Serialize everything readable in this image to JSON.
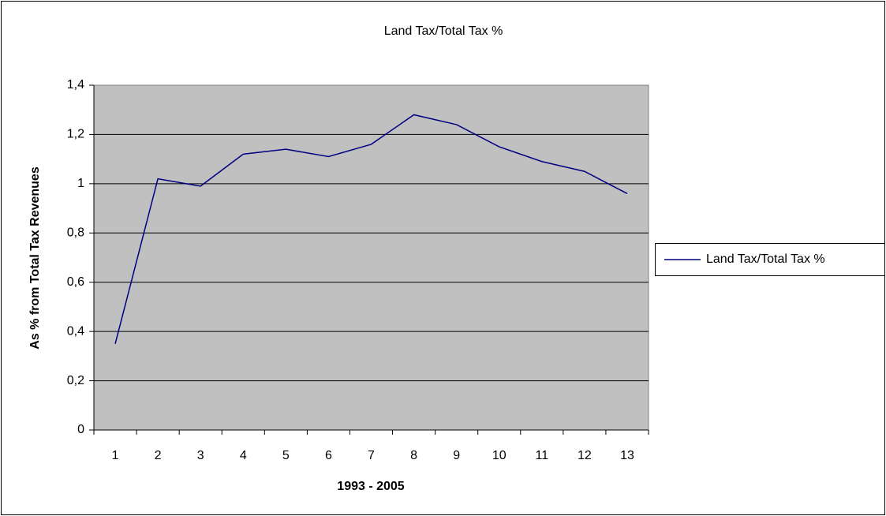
{
  "chart_data": {
    "type": "line",
    "title": "Land Tax/Total Tax %",
    "x_label": "1993 - 2005",
    "y_label": "As % from Total Tax Revenues",
    "categories": [
      "1",
      "2",
      "3",
      "4",
      "5",
      "6",
      "7",
      "8",
      "9",
      "10",
      "11",
      "12",
      "13"
    ],
    "series": [
      {
        "name": "Land Tax/Total Tax %",
        "color": "#000080",
        "values": [
          0.35,
          1.02,
          0.99,
          1.12,
          1.14,
          1.11,
          1.16,
          1.28,
          1.24,
          1.15,
          1.09,
          1.05,
          0.96
        ]
      }
    ],
    "ylim": [
      0,
      1.4
    ],
    "yticks": [
      0,
      {
        "value": 0.2,
        "label": "0,2"
      },
      {
        "value": 0.4,
        "label": "0,4"
      },
      {
        "value": 0.6,
        "label": "0,6"
      },
      {
        "value": 0.8,
        "label": "0,8"
      },
      1,
      {
        "value": 1.2,
        "label": "1,2"
      },
      {
        "value": 1.4,
        "label": "1,4"
      }
    ],
    "grid": true,
    "legend": "right"
  }
}
